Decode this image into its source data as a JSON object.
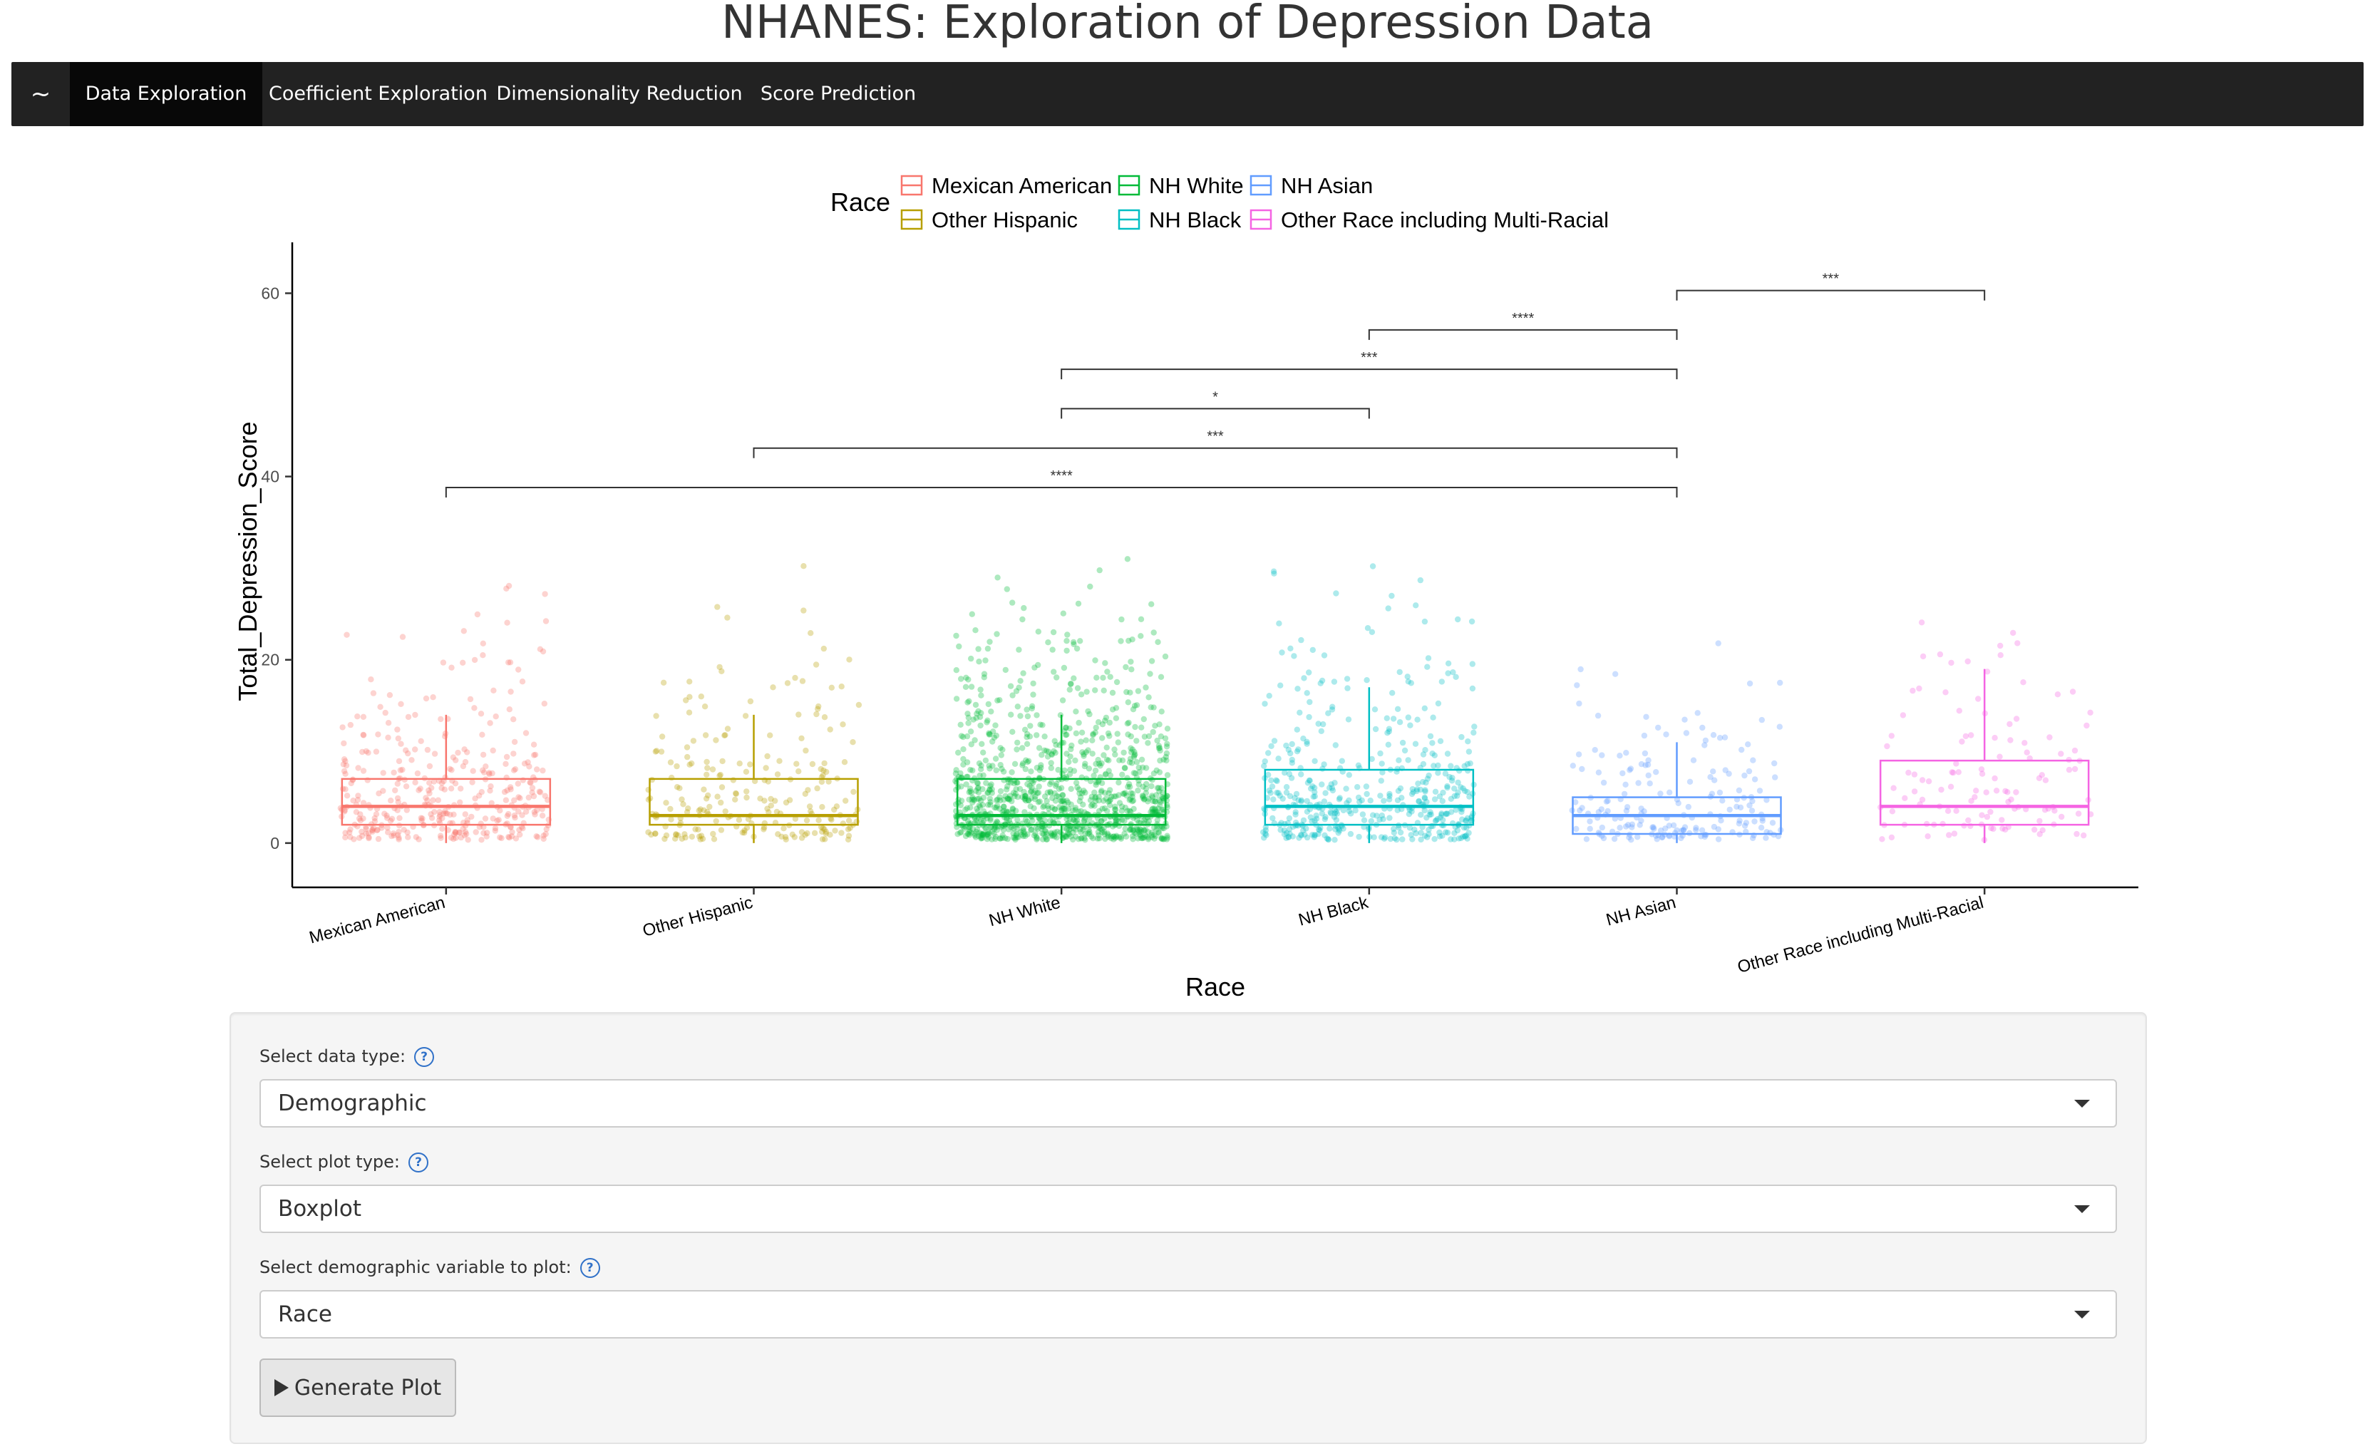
{
  "page": {
    "title": "NHANES: Exploration of Depression Data"
  },
  "navbar": {
    "brand": "~",
    "tabs": [
      {
        "label": "Data Exploration",
        "active": true
      },
      {
        "label": "Coefficient Exploration",
        "active": false
      },
      {
        "label": "Dimensionality Reduction",
        "active": false
      },
      {
        "label": "Score Prediction",
        "active": false
      }
    ]
  },
  "chart_data": {
    "type": "boxplot",
    "title": "",
    "xlabel": "Race",
    "ylabel": "Total_Depression_Score",
    "ylim": [
      -2.5,
      64
    ],
    "yticks": [
      0,
      20,
      40,
      60
    ],
    "legend": {
      "title": "Race",
      "position": "top"
    },
    "grid": false,
    "jitter_points": true,
    "series": [
      {
        "name": "Mexican American",
        "color": "#F8766D",
        "q1": 2,
        "median": 4,
        "q3": 7,
        "whisker_low": 0,
        "whisker_high": 14
      },
      {
        "name": "Other Hispanic",
        "color": "#B79F00",
        "q1": 2,
        "median": 3,
        "q3": 7,
        "whisker_low": 0,
        "whisker_high": 14
      },
      {
        "name": "NH White",
        "color": "#00BA38",
        "q1": 2,
        "median": 3,
        "q3": 7,
        "whisker_low": 0,
        "whisker_high": 14
      },
      {
        "name": "NH Black",
        "color": "#00BFC4",
        "q1": 2,
        "median": 4,
        "q3": 8,
        "whisker_low": 0,
        "whisker_high": 17
      },
      {
        "name": "NH Asian",
        "color": "#619CFF",
        "q1": 1,
        "median": 3,
        "q3": 5,
        "whisker_low": 0,
        "whisker_high": 11
      },
      {
        "name": "Other Race including Multi-Racial",
        "color": "#F564E3",
        "q1": 2,
        "median": 4,
        "q3": 9,
        "whisker_low": 0,
        "whisker_high": 19
      }
    ],
    "significance": [
      {
        "from": 0,
        "to": 4,
        "y": 38.8,
        "label": "****"
      },
      {
        "from": 1,
        "to": 4,
        "y": 43.1,
        "label": "***"
      },
      {
        "from": 2,
        "to": 3,
        "y": 47.4,
        "label": "*"
      },
      {
        "from": 2,
        "to": 4,
        "y": 51.7,
        "label": "***"
      },
      {
        "from": 3,
        "to": 4,
        "y": 56.0,
        "label": "****"
      },
      {
        "from": 4,
        "to": 5,
        "y": 60.3,
        "label": "***"
      }
    ]
  },
  "controls": {
    "data_type": {
      "label": "Select data type:",
      "value": "Demographic"
    },
    "plot_type": {
      "label": "Select plot type:",
      "value": "Boxplot"
    },
    "variable": {
      "label": "Select demographic variable to plot:",
      "value": "Race"
    },
    "generate_label": "Generate Plot",
    "help_glyph": "?"
  }
}
